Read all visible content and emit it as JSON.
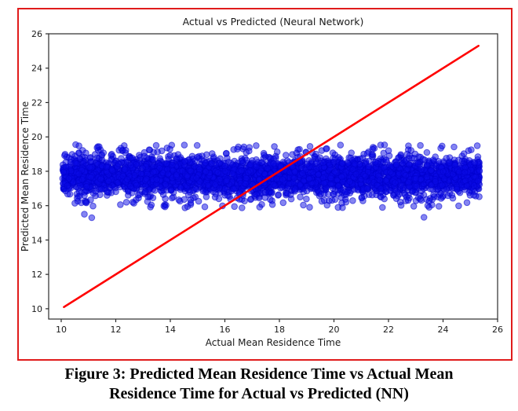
{
  "figure": {
    "border_color": "#e01b1b",
    "background": "#ffffff"
  },
  "caption": {
    "line1": "Figure 3: Predicted Mean Residence Time vs Actual Mean",
    "line2": "Residence Time for Actual vs Predicted (NN)"
  },
  "chart_data": {
    "type": "scatter",
    "title": "Actual vs Predicted (Neural Network)",
    "xlabel": "Actual Mean Residence Time",
    "ylabel": "Predicted Mean Residence Time",
    "xlim": [
      9.54,
      26
    ],
    "ylim": [
      9.4,
      26
    ],
    "xticks": [
      10,
      12,
      14,
      16,
      18,
      20,
      22,
      24,
      26
    ],
    "yticks": [
      10,
      12,
      14,
      16,
      18,
      20,
      22,
      24,
      26
    ],
    "grid": false,
    "legend": "none",
    "axis_color": "#2b2b2b",
    "text_color": "#1a1a1a",
    "series": [
      {
        "name": "scatter-predictions",
        "kind": "scatter",
        "color": "#0a0ae6",
        "edge_color": "#0000cc",
        "alpha": 0.5,
        "marker_radius": 3.8,
        "n_points": 3900,
        "x_range": [
          10.05,
          25.35
        ],
        "y_mean": 17.72,
        "y_std": 0.52,
        "y_clip": [
          16.2,
          19.55
        ],
        "fringe_n": 130,
        "fringe_offset_min": 1.25,
        "fringe_offset_max": 1.85,
        "seed": 42,
        "outliers": [
          [
            10.85,
            15.5
          ],
          [
            11.12,
            15.3
          ],
          [
            23.3,
            15.32
          ],
          [
            16.35,
            15.95
          ],
          [
            20.15,
            15.9
          ]
        ]
      },
      {
        "name": "identity-line",
        "kind": "line",
        "color": "#ff0000",
        "width": 2.6,
        "points": [
          [
            10.1,
            10.1
          ],
          [
            25.3,
            25.3
          ]
        ]
      }
    ]
  }
}
